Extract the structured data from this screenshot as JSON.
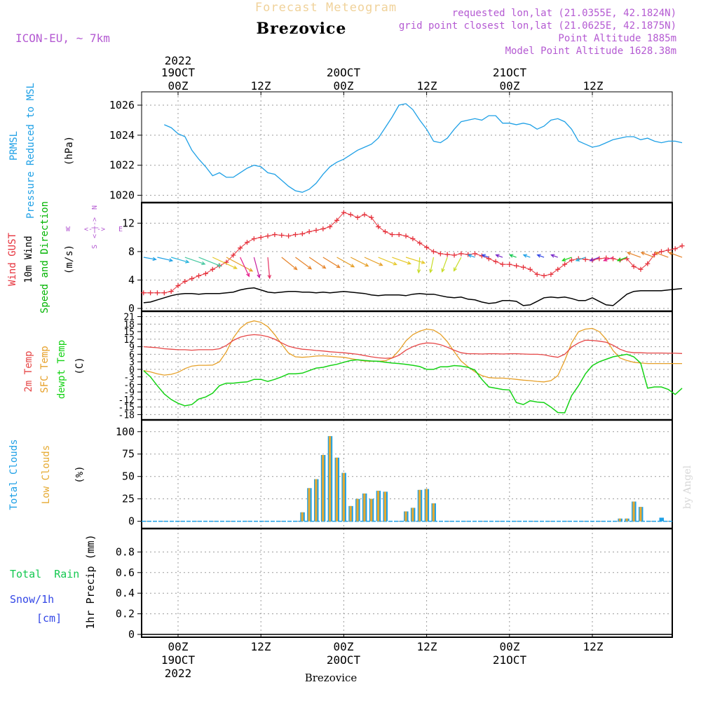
{
  "header": {
    "product": "Forecast Meteogram",
    "station": "Brezovice",
    "model": "ICON-EU, ~ 7km",
    "requested": "requested lon,lat (21.0355E, 42.1824N)",
    "grid_point": "grid point closest lon,lat (21.0625E, 42.1875N)",
    "point_altitude": "Point Altitude 1885m",
    "model_altitude": "Model Point Altitude 1628.38m",
    "footer_station": "Brezovice",
    "watermark": "by Angel"
  },
  "colors": {
    "pressure": "#1ea0e6",
    "gust": "#e6323c",
    "wind": "#000000",
    "dir": "#00b400",
    "temp2m": "#e64646",
    "sfc": "#e6a028",
    "dew": "#14d214",
    "total_clouds": "#1ea0e6",
    "low_clouds": "#e6aa32",
    "rain": "#14c850",
    "snow": "#3246e6",
    "purple": "#b45ad2"
  },
  "chart_data": [
    {
      "type": "line",
      "panel": "pressure",
      "labels": [
        "PRMSL",
        "Pressure Reduced to MSL"
      ],
      "unit": "(hPa)",
      "ylim": [
        1019.7,
        1026.7
      ],
      "yticks": [
        1020,
        1022,
        1024,
        1026
      ],
      "x": [
        -2,
        -1,
        0,
        1,
        2,
        3,
        4,
        5,
        6,
        7,
        8,
        9,
        10,
        11,
        12,
        13,
        14,
        15,
        16,
        17,
        18,
        19,
        20,
        21,
        22,
        23,
        24,
        25,
        26,
        27,
        28,
        29,
        30,
        31,
        32,
        33,
        34,
        35,
        36,
        37,
        38,
        39,
        40,
        41,
        42,
        43,
        44,
        45,
        46,
        47,
        48,
        49,
        50,
        51,
        52,
        53,
        54,
        55,
        56,
        57,
        58,
        59,
        60,
        61,
        62,
        63,
        64,
        65,
        66,
        67,
        68,
        69,
        70,
        71,
        72,
        73
      ],
      "values": [
        1024.7,
        1024.5,
        1024.1,
        1023.9,
        1023.0,
        1022.4,
        1021.9,
        1021.3,
        1021.5,
        1021.2,
        1021.2,
        1021.5,
        1021.8,
        1022.0,
        1021.9,
        1021.5,
        1021.4,
        1021.0,
        1020.6,
        1020.3,
        1020.2,
        1020.4,
        1020.8,
        1021.4,
        1021.9,
        1022.2,
        1022.4,
        1022.7,
        1023.0,
        1023.2,
        1023.4,
        1023.8,
        1024.5,
        1025.2,
        1026.0,
        1026.1,
        1025.7,
        1025.0,
        1024.4,
        1023.6,
        1023.5,
        1023.8,
        1024.4,
        1024.9,
        1025.0,
        1025.1,
        1025.0,
        1025.3,
        1025.3,
        1024.8,
        1024.8,
        1024.7,
        1024.8,
        1024.7,
        1024.4,
        1024.6,
        1025.0,
        1025.1,
        1024.9,
        1024.4,
        1023.6,
        1023.4,
        1023.2,
        1023.3,
        1023.5,
        1023.7,
        1023.8,
        1023.9,
        1023.9,
        1023.7,
        1023.8,
        1023.6,
        1023.5,
        1023.6,
        1023.6,
        1023.5
      ]
    },
    {
      "type": "line",
      "panel": "wind",
      "labels": [
        "Wind GUST",
        "10m Wind",
        "Speed and Direction"
      ],
      "unit": "(m/s)",
      "compass": {
        "n": "N",
        "w": "W",
        "e": "E",
        "s": "S"
      },
      "ylim": [
        0,
        14.5
      ],
      "yticks": [
        0,
        4,
        8,
        12
      ],
      "x": [
        -5,
        -4,
        -3,
        -2,
        -1,
        0,
        1,
        2,
        3,
        4,
        5,
        6,
        7,
        8,
        9,
        10,
        11,
        12,
        13,
        14,
        15,
        16,
        17,
        18,
        19,
        20,
        21,
        22,
        23,
        24,
        25,
        26,
        27,
        28,
        29,
        30,
        31,
        32,
        33,
        34,
        35,
        36,
        37,
        38,
        39,
        40,
        41,
        42,
        43,
        44,
        45,
        46,
        47,
        48,
        49,
        50,
        51,
        52,
        53,
        54,
        55,
        56,
        57,
        58,
        59,
        60,
        61,
        62,
        63,
        64,
        65,
        66,
        67,
        68,
        69,
        70,
        71,
        72,
        73
      ],
      "series": [
        {
          "name": "Wind GUST",
          "values": [
            2.2,
            2.2,
            2.2,
            2.2,
            2.4,
            3.2,
            3.8,
            4.2,
            4.6,
            4.9,
            5.5,
            6.0,
            6.5,
            7.5,
            8.5,
            9.3,
            9.8,
            10.0,
            10.2,
            10.4,
            10.3,
            10.2,
            10.4,
            10.5,
            10.8,
            11.0,
            11.2,
            11.5,
            12.4,
            13.5,
            13.2,
            12.8,
            13.2,
            12.8,
            11.5,
            10.8,
            10.4,
            10.4,
            10.2,
            9.8,
            9.2,
            8.6,
            8.0,
            7.7,
            7.6,
            7.5,
            7.7,
            7.6,
            7.7,
            7.4,
            7.0,
            6.6,
            6.2,
            6.2,
            6.0,
            5.8,
            5.5,
            4.8,
            4.6,
            4.8,
            5.5,
            6.2,
            6.8,
            7.0,
            6.9,
            6.8,
            7.0,
            7.1,
            7.0,
            6.8,
            7.0,
            5.9,
            5.5,
            6.3,
            7.6,
            8.0,
            8.2,
            8.4,
            8.8
          ]
        },
        {
          "name": "10m Wind",
          "values": [
            0.8,
            0.9,
            1.2,
            1.5,
            1.8,
            2.0,
            2.1,
            2.1,
            2.0,
            2.1,
            2.1,
            2.1,
            2.2,
            2.3,
            2.6,
            2.8,
            2.9,
            2.6,
            2.3,
            2.2,
            2.3,
            2.4,
            2.4,
            2.3,
            2.3,
            2.2,
            2.3,
            2.2,
            2.3,
            2.4,
            2.3,
            2.2,
            2.1,
            1.9,
            1.8,
            1.9,
            1.9,
            1.9,
            1.8,
            2.0,
            2.1,
            2.0,
            2.0,
            1.8,
            1.6,
            1.5,
            1.6,
            1.3,
            1.2,
            0.9,
            0.7,
            0.8,
            1.1,
            1.1,
            1.0,
            0.4,
            0.5,
            1.0,
            1.5,
            1.6,
            1.5,
            1.6,
            1.4,
            1.1,
            1.1,
            1.5,
            1.0,
            0.5,
            0.4,
            1.2,
            2.0,
            2.4,
            2.5,
            2.5,
            2.5,
            2.5,
            2.6,
            2.7,
            2.8
          ]
        }
      ]
    },
    {
      "type": "line",
      "panel": "temperature",
      "labels": [
        "2m Temp",
        "SFC Temp",
        "dewpt Temp"
      ],
      "unit": "(C)",
      "ylim": [
        -19,
        22
      ],
      "yticks": [
        21,
        18,
        15,
        12,
        9,
        6,
        3,
        0,
        -3,
        -6,
        -9,
        -12,
        -15,
        -18
      ],
      "x": [
        -5,
        -4,
        -3,
        -2,
        -1,
        0,
        1,
        2,
        3,
        4,
        5,
        6,
        7,
        8,
        9,
        10,
        11,
        12,
        13,
        14,
        15,
        16,
        17,
        18,
        19,
        20,
        21,
        22,
        23,
        24,
        25,
        26,
        27,
        28,
        29,
        30,
        31,
        32,
        33,
        34,
        35,
        36,
        37,
        38,
        39,
        40,
        41,
        42,
        43,
        44,
        45,
        46,
        47,
        48,
        49,
        50,
        51,
        52,
        53,
        54,
        55,
        56,
        57,
        58,
        59,
        60,
        61,
        62,
        63,
        64,
        65,
        66,
        67,
        68,
        69,
        70,
        71,
        72,
        73
      ],
      "series": [
        {
          "name": "2m Temp",
          "values": [
            9.0,
            8.8,
            8.6,
            8.2,
            8.0,
            7.8,
            7.8,
            7.6,
            7.8,
            7.8,
            7.8,
            8.2,
            9.5,
            11.5,
            12.8,
            13.5,
            13.8,
            13.6,
            13.0,
            12.0,
            10.5,
            9.2,
            8.5,
            8.0,
            7.8,
            7.5,
            7.3,
            7.0,
            6.8,
            6.6,
            6.3,
            6.0,
            5.5,
            5.0,
            4.6,
            4.4,
            4.5,
            5.6,
            7.6,
            9.0,
            10.0,
            10.5,
            10.4,
            9.8,
            8.8,
            7.6,
            6.6,
            6.2,
            6.2,
            6.1,
            6.2,
            6.2,
            6.1,
            6.2,
            6.2,
            6.1,
            6.0,
            6.0,
            5.8,
            5.2,
            4.8,
            6.0,
            8.8,
            10.5,
            11.6,
            11.5,
            11.2,
            10.8,
            9.6,
            8.0,
            7.0,
            6.6,
            6.6,
            6.5,
            6.5,
            6.5,
            6.4,
            6.4,
            6.3
          ]
        },
        {
          "name": "SFC Temp",
          "values": [
            -0.5,
            -1.0,
            -1.8,
            -2.3,
            -2.0,
            -1.2,
            0.3,
            1.3,
            1.6,
            1.6,
            1.7,
            3.0,
            7.0,
            12.5,
            16.3,
            18.5,
            19.3,
            18.7,
            17.0,
            13.8,
            10.0,
            6.5,
            5.0,
            4.8,
            5.0,
            5.3,
            5.4,
            5.2,
            5.0,
            4.8,
            4.3,
            3.8,
            3.3,
            3.2,
            3.2,
            3.4,
            4.5,
            7.5,
            11.3,
            13.8,
            15.2,
            16.0,
            15.6,
            14.0,
            11.0,
            7.0,
            3.3,
            1.0,
            -1.0,
            -2.5,
            -3.3,
            -3.5,
            -3.5,
            -3.7,
            -4.0,
            -4.3,
            -4.5,
            -4.8,
            -5.0,
            -4.5,
            -2.5,
            3.5,
            10.5,
            15.0,
            16.0,
            16.3,
            15.0,
            12.0,
            7.5,
            4.5,
            3.5,
            2.8,
            2.5,
            2.3,
            2.3,
            2.3,
            2.3,
            2.3,
            2.3
          ]
        },
        {
          "name": "dewpt Temp",
          "values": [
            -0.5,
            -3.0,
            -6.5,
            -9.8,
            -12.0,
            -13.5,
            -14.5,
            -14.0,
            -11.8,
            -11.0,
            -9.5,
            -6.5,
            -5.5,
            -5.5,
            -5.2,
            -5.0,
            -4.0,
            -4.0,
            -4.8,
            -4.0,
            -3.0,
            -1.8,
            -1.8,
            -1.5,
            -0.5,
            0.5,
            0.8,
            1.5,
            2.0,
            2.8,
            3.5,
            3.8,
            3.5,
            3.3,
            3.2,
            2.8,
            2.5,
            2.3,
            2.0,
            1.6,
            1.1,
            0.0,
            0.0,
            1.0,
            1.0,
            1.5,
            1.3,
            0.8,
            -0.3,
            -4.0,
            -7.0,
            -7.5,
            -8.0,
            -8.2,
            -13.2,
            -14.0,
            -12.5,
            -13.0,
            -13.2,
            -15.0,
            -17.2,
            -17.3,
            -10.5,
            -6.5,
            -1.8,
            1.5,
            3.0,
            4.0,
            5.0,
            5.5,
            6.0,
            5.0,
            2.5,
            -7.5,
            -7.0,
            -7.0,
            -8.0,
            -10.0,
            -7.5
          ]
        }
      ]
    },
    {
      "type": "bar",
      "panel": "clouds",
      "labels": [
        "Total Clouds",
        "Low Clouds"
      ],
      "unit": "(%)",
      "ylim": [
        -5,
        110
      ],
      "yticks": [
        0,
        25,
        50,
        75,
        100
      ],
      "x": [
        18,
        19,
        20,
        21,
        22,
        23,
        24,
        25,
        26,
        27,
        28,
        29,
        30,
        31,
        32,
        33,
        34,
        35,
        36,
        37,
        38,
        39,
        40,
        41,
        42,
        43,
        44,
        45,
        46,
        47,
        48,
        49,
        50,
        51,
        52,
        53,
        54,
        55,
        56,
        57,
        58,
        59,
        60,
        61,
        62,
        63,
        64,
        65,
        66,
        67,
        68,
        69,
        70
      ],
      "series": [
        {
          "name": "Total Clouds",
          "values": [
            10,
            37,
            47,
            74,
            95,
            71,
            54,
            17,
            25,
            31,
            25,
            34,
            33,
            0,
            0,
            11,
            15,
            35,
            36,
            20,
            0,
            0,
            0,
            0,
            0,
            0,
            0,
            0,
            0,
            0,
            0,
            0,
            0,
            0,
            0,
            0,
            0,
            0,
            0,
            0,
            0,
            0,
            0,
            0,
            0,
            0,
            3,
            3,
            22,
            16,
            0,
            0,
            4
          ]
        },
        {
          "name": "Low Clouds",
          "values": [
            10,
            37,
            47,
            74,
            95,
            71,
            54,
            17,
            25,
            31,
            25,
            34,
            33,
            0,
            0,
            11,
            15,
            35,
            36,
            20,
            0,
            0,
            0,
            0,
            0,
            0,
            0,
            0,
            0,
            0,
            0,
            0,
            0,
            0,
            0,
            0,
            0,
            0,
            0,
            0,
            0,
            0,
            0,
            0,
            0,
            0,
            3,
            3,
            22,
            16,
            0,
            0,
            0
          ]
        }
      ]
    },
    {
      "type": "line",
      "panel": "precip",
      "labels": [
        "Total  Rain",
        "Snow/1h",
        "[cm]"
      ],
      "unit": "1hr Precip (mm)",
      "ylim": [
        0,
        1.0
      ],
      "yticks": [
        0,
        0.2,
        0.4,
        0.6,
        0.8
      ],
      "ytick_labels": [
        "0",
        "0.2",
        "0.4",
        "0.6",
        "0.8"
      ],
      "x": [],
      "values": []
    }
  ],
  "time_axis": {
    "ticks": [
      {
        "hour": 0,
        "label": "00Z",
        "day": "19OCT",
        "year": "2022"
      },
      {
        "hour": 12,
        "label": "12Z",
        "day": "",
        "year": ""
      },
      {
        "hour": 24,
        "label": "00Z",
        "day": "20OCT",
        "year": ""
      },
      {
        "hour": 36,
        "label": "12Z",
        "day": "",
        "year": ""
      },
      {
        "hour": 48,
        "label": "00Z",
        "day": "21OCT",
        "year": ""
      },
      {
        "hour": 60,
        "label": "12Z",
        "day": "",
        "year": ""
      }
    ]
  }
}
